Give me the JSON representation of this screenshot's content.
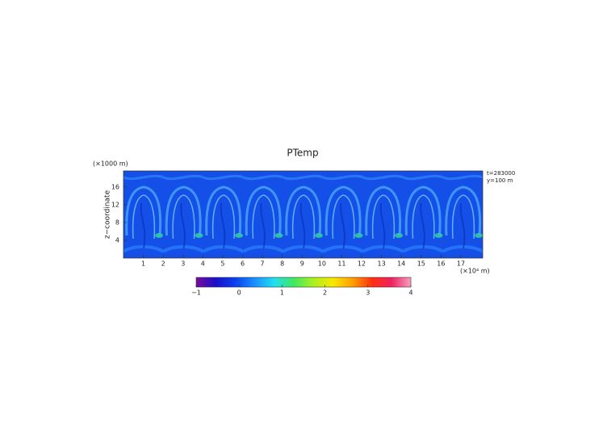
{
  "chart_data": {
    "type": "heatmap",
    "title": "PTemp",
    "ylabel": "z−coordinate",
    "yunit": "(×1000 m)",
    "xunit": "(×10⁴ m)",
    "annotations": [
      "t=283000",
      "y=100 m"
    ],
    "xlim": [
      0,
      18.1
    ],
    "xticks": [
      1,
      2,
      3,
      4,
      5,
      6,
      7,
      8,
      9,
      10,
      11,
      12,
      13,
      14,
      15,
      16,
      17
    ],
    "ylim": [
      0,
      19.6
    ],
    "yticks": [
      4,
      8,
      12,
      16
    ],
    "clim": [
      -1,
      4
    ],
    "cticks": [
      {
        "value": -1,
        "label": "−1"
      },
      0,
      1,
      2,
      3,
      4
    ],
    "colorscale": [
      "#7a0a9a",
      "#1a10c8",
      "#0a40f0",
      "#1a90ff",
      "#1ee0f0",
      "#40e860",
      "#a8f020",
      "#f8e800",
      "#ffa000",
      "#ff3010",
      "#f02060",
      "#f8a0c0"
    ]
  }
}
